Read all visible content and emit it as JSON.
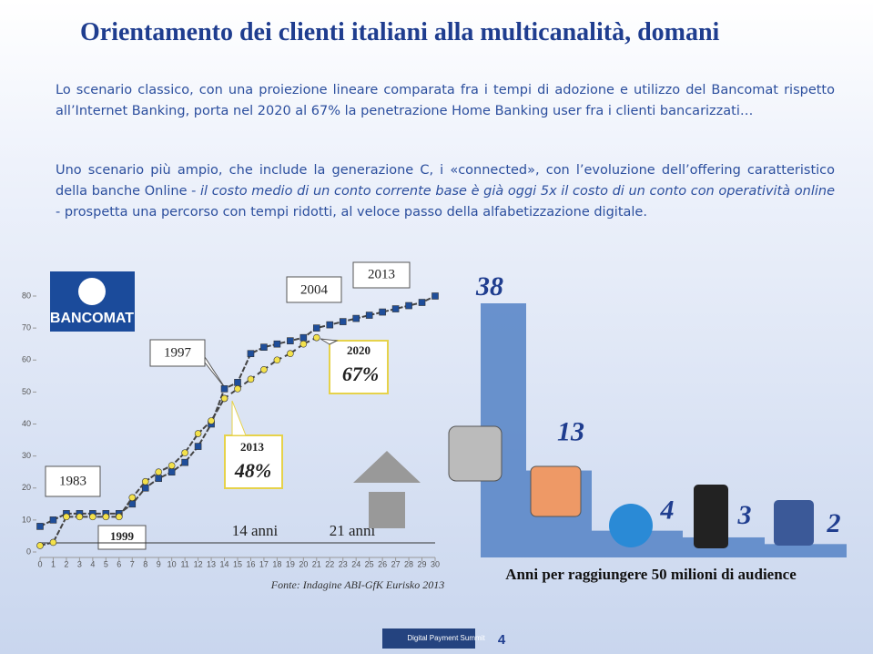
{
  "header": {
    "title": "Orientamento dei clienti italiani alla multicanalità, domani"
  },
  "paragraph1": "Lo scenario classico, con una proiezione lineare comparata fra i tempi di adozione e utilizzo del Bancomat rispetto all’Internet Banking, porta nel 2020 al 67% la penetrazione Home Banking user fra i clienti bancarizzati…",
  "paragraph2": {
    "before": "Uno scenario più ampio, che include la generazione C, i «connected», con l’evoluzione dell’offering caratteristico della banche Online - ",
    "italic": "il costo medio di un conto corrente base è già oggi 5x il costo di un conto con operatività online",
    "after": " - prospetta una percorso con tempi ridotti, al veloce passo della alfabetizzazione digitale."
  },
  "chart_data": [
    {
      "type": "line",
      "xlim": [
        0,
        30
      ],
      "xticks": [
        0,
        1,
        2,
        3,
        4,
        5,
        6,
        7,
        8,
        9,
        10,
        11,
        12,
        13,
        14,
        15,
        16,
        17,
        18,
        19,
        20,
        21,
        22,
        23,
        24,
        25,
        26,
        27,
        28,
        29,
        30
      ],
      "ylim": [
        0,
        80
      ],
      "yticks": [
        0,
        10,
        20,
        30,
        40,
        50,
        60,
        70,
        80
      ],
      "logo": "BANCOMAT",
      "series": [
        {
          "color": "#1f4e9a",
          "marker": "square",
          "dashed": false,
          "x": [
            0,
            1,
            2,
            3,
            4,
            5,
            6,
            7,
            8,
            9,
            10,
            11,
            12,
            13,
            14,
            15,
            16,
            17,
            18,
            19,
            20,
            21,
            22,
            23,
            24,
            25,
            26,
            27,
            28,
            29,
            30
          ],
          "values": [
            8,
            10,
            12,
            12,
            12,
            12,
            12,
            15,
            20,
            23,
            25,
            28,
            33,
            40,
            51,
            53,
            62,
            64,
            65,
            66,
            67,
            70,
            71,
            72,
            73,
            74,
            75,
            76,
            77,
            78,
            80
          ]
        },
        {
          "color": "#f3e14b",
          "marker": "circle",
          "dashed": false,
          "x": [
            0,
            1,
            2,
            3,
            4,
            5,
            6,
            7,
            8,
            9,
            10,
            11,
            12,
            13,
            14
          ],
          "values": [
            2,
            3,
            11,
            11,
            11,
            11,
            11,
            17,
            22,
            25,
            27,
            31,
            37,
            41,
            48
          ]
        },
        {
          "color": "#f3e14b",
          "marker": "circle",
          "dashed": true,
          "x": [
            14,
            15,
            16,
            17,
            18,
            19,
            20,
            21
          ],
          "values": [
            48,
            51,
            54,
            57,
            60,
            62,
            65,
            67
          ]
        }
      ],
      "annotations": {
        "y1983": "1983",
        "y1997": "1997",
        "y2004": "2004",
        "y2013a": "2013",
        "y2020": "2020",
        "p67": "67%",
        "y2013b": "2013",
        "p48": "48%",
        "y1999": "1999",
        "a14": "14 anni",
        "a21": "21 anni"
      },
      "source": "Fonte: Indagine ABI-GfK Eurisko 2013"
    },
    {
      "type": "bar",
      "categories": [
        null,
        null,
        null,
        null,
        null
      ],
      "values": [
        38,
        13,
        4,
        3,
        2
      ],
      "color": "#5b87c8",
      "caption": "Anni per raggiungere 50 milioni di audience"
    }
  ],
  "footer": {
    "logo": "Digital Payment Summit",
    "page": "4"
  }
}
